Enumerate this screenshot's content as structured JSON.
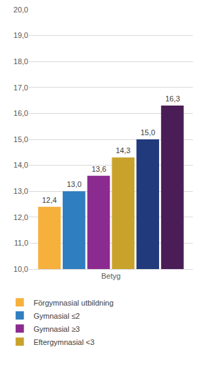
{
  "chart_data": {
    "type": "bar",
    "categories": [
      "Betyg"
    ],
    "series": [
      {
        "name": "Förgymnasial utbildning",
        "color": "#f6b03c",
        "values": [
          12.4
        ],
        "value_labels": [
          "12,4"
        ]
      },
      {
        "name": "Gymnasial ≤2",
        "color": "#2f7ec0",
        "values": [
          13.0
        ],
        "value_labels": [
          "13,0"
        ]
      },
      {
        "name": "Gymnasial ≥3",
        "color": "#8c2b8f",
        "values": [
          13.6
        ],
        "value_labels": [
          "13,6"
        ]
      },
      {
        "name": "Eftergymnasial <3",
        "color": "#c9a22c",
        "values": [
          14.3
        ],
        "value_labels": [
          "14,3"
        ]
      },
      {
        "color": "#213a7b",
        "values": [
          15.0
        ],
        "value_labels": [
          "15,0"
        ]
      },
      {
        "color": "#4b1d57",
        "values": [
          16.3
        ],
        "value_labels": [
          "16,3"
        ]
      }
    ],
    "ylim": [
      10,
      20
    ],
    "yticks": [
      {
        "value": 10,
        "label": "10,0"
      },
      {
        "value": 11,
        "label": "11,0"
      },
      {
        "value": 12,
        "label": "12,0"
      },
      {
        "value": 13,
        "label": "13,0"
      },
      {
        "value": 14,
        "label": "14,0"
      },
      {
        "value": 15,
        "label": "15,0"
      },
      {
        "value": 16,
        "label": "16,0"
      },
      {
        "value": 17,
        "label": "17,0"
      },
      {
        "value": 18,
        "label": "18,0"
      },
      {
        "value": 19,
        "label": "19,0"
      },
      {
        "value": 20,
        "label": "20,0"
      }
    ],
    "grid": true,
    "data_labels": true,
    "legend": "bottom"
  }
}
